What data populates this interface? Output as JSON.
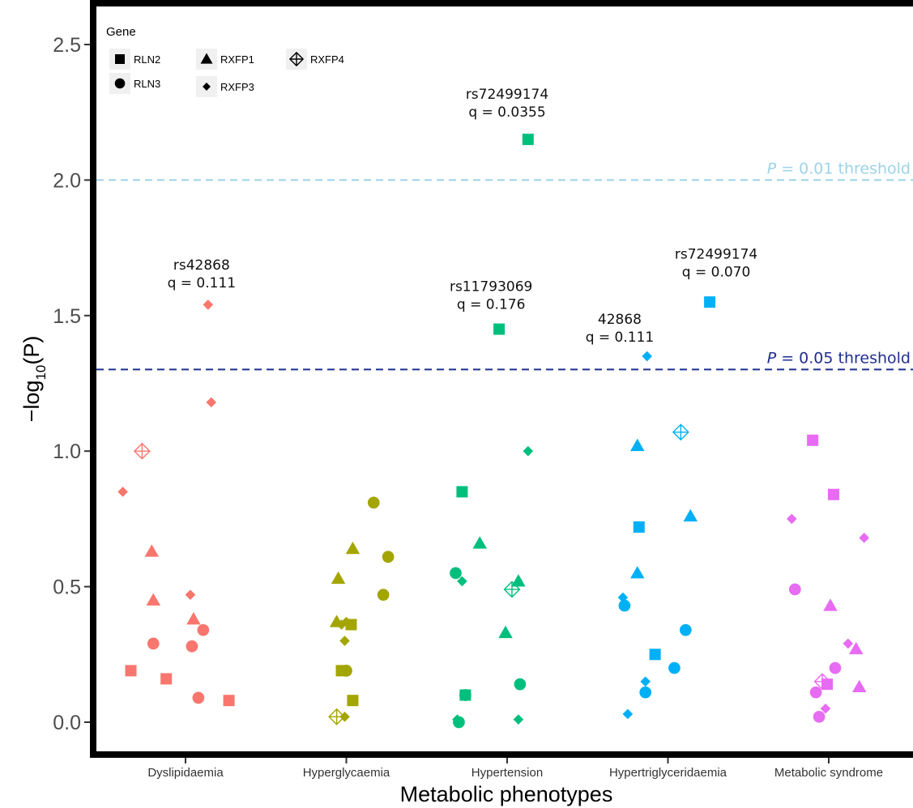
{
  "chart_data": {
    "type": "scatter",
    "title": "",
    "xlabel": "Metabolic phenotypes",
    "ylabel_prefix": "−log",
    "ylabel_sub": "10",
    "ylabel_arg": "(P)",
    "ylim": [
      -0.1,
      2.6
    ],
    "yticks": [
      "0.0",
      "0.5",
      "1.0",
      "1.5",
      "2.0",
      "2.5"
    ],
    "ytick_values": [
      0,
      0.5,
      1.0,
      1.5,
      2.0,
      2.5
    ],
    "categories": [
      "Dyslipidaemia",
      "Hyperglycaemia",
      "Hypertension",
      "Hypertriglyceridaemia",
      "Metabolic syndrome"
    ],
    "colors": {
      "Dyslipidaemia": "#F8766D",
      "Hyperglycaemia": "#A3A500",
      "Hypertension": "#00BF7D",
      "Hypertriglyceridaemia": "#00B0F6",
      "Metabolic syndrome": "#E76BF3"
    },
    "legend": {
      "title": "Gene",
      "position": "top-left",
      "entries": [
        {
          "gene": "RLN2",
          "shape": "square"
        },
        {
          "gene": "RLN3",
          "shape": "circle"
        },
        {
          "gene": "RXFP1",
          "shape": "triangle"
        },
        {
          "gene": "RXFP3",
          "shape": "diamond"
        },
        {
          "gene": "RXFP4",
          "shape": "crossed-diamond"
        }
      ]
    },
    "thresholds": [
      {
        "value": 2.0,
        "p_label": "P",
        "label": " = 0.01 threshold",
        "color": "#9DD3E8"
      },
      {
        "value": 1.30103,
        "p_label": "P",
        "label": " = 0.05 threshold",
        "color": "#1F2F8F"
      }
    ],
    "annotations": [
      {
        "lines": [
          "rs72499174",
          "q = 0.0355"
        ],
        "category": "Hypertension",
        "x_offset": 0.0,
        "y": 2.3
      },
      {
        "lines": [
          "rs42868",
          "q = 0.111"
        ],
        "category": "Dyslipidaemia",
        "x_offset": 0.1,
        "y": 1.67
      },
      {
        "lines": [
          "rs11793069",
          "q = 0.176"
        ],
        "category": "Hypertension",
        "x_offset": -0.1,
        "y": 1.59
      },
      {
        "lines": [
          "rs72499174",
          "q = 0.070"
        ],
        "category": "Hypertriglyceridaemia",
        "x_offset": 0.3,
        "y": 1.71
      },
      {
        "lines": [
          "42868",
          "q = 0.111"
        ],
        "category": "Hypertriglyceridaemia",
        "x_offset": -0.3,
        "y": 1.47
      }
    ],
    "points": [
      {
        "category": "Dyslipidaemia",
        "gene": "RLN2",
        "x_offset": -0.34,
        "y": 0.19
      },
      {
        "category": "Dyslipidaemia",
        "gene": "RLN2",
        "x_offset": -0.12,
        "y": 0.16
      },
      {
        "category": "Dyslipidaemia",
        "gene": "RLN2",
        "x_offset": 0.27,
        "y": 0.08
      },
      {
        "category": "Dyslipidaemia",
        "gene": "RLN3",
        "x_offset": -0.2,
        "y": 0.29
      },
      {
        "category": "Dyslipidaemia",
        "gene": "RLN3",
        "x_offset": 0.04,
        "y": 0.28
      },
      {
        "category": "Dyslipidaemia",
        "gene": "RLN3",
        "x_offset": 0.11,
        "y": 0.34
      },
      {
        "category": "Dyslipidaemia",
        "gene": "RLN3",
        "x_offset": 0.08,
        "y": 0.09
      },
      {
        "category": "Dyslipidaemia",
        "gene": "RXFP1",
        "x_offset": -0.21,
        "y": 0.63
      },
      {
        "category": "Dyslipidaemia",
        "gene": "RXFP1",
        "x_offset": -0.2,
        "y": 0.45
      },
      {
        "category": "Dyslipidaemia",
        "gene": "RXFP1",
        "x_offset": 0.05,
        "y": 0.38
      },
      {
        "category": "Dyslipidaemia",
        "gene": "RXFP3",
        "x_offset": 0.14,
        "y": 1.54
      },
      {
        "category": "Dyslipidaemia",
        "gene": "RXFP3",
        "x_offset": 0.16,
        "y": 1.18
      },
      {
        "category": "Dyslipidaemia",
        "gene": "RXFP3",
        "x_offset": -0.39,
        "y": 0.85
      },
      {
        "category": "Dyslipidaemia",
        "gene": "RXFP3",
        "x_offset": 0.03,
        "y": 0.47
      },
      {
        "category": "Dyslipidaemia",
        "gene": "RXFP4",
        "x_offset": -0.27,
        "y": 1.0
      },
      {
        "category": "Hyperglycaemia",
        "gene": "RLN2",
        "x_offset": -0.03,
        "y": 0.19
      },
      {
        "category": "Hyperglycaemia",
        "gene": "RLN2",
        "x_offset": 0.03,
        "y": 0.36
      },
      {
        "category": "Hyperglycaemia",
        "gene": "RLN2",
        "x_offset": 0.04,
        "y": 0.08
      },
      {
        "category": "Hyperglycaemia",
        "gene": "RLN3",
        "x_offset": 0.0,
        "y": 0.19
      },
      {
        "category": "Hyperglycaemia",
        "gene": "RLN3",
        "x_offset": 0.17,
        "y": 0.81
      },
      {
        "category": "Hyperglycaemia",
        "gene": "RLN3",
        "x_offset": 0.26,
        "y": 0.61
      },
      {
        "category": "Hyperglycaemia",
        "gene": "RLN3",
        "x_offset": 0.23,
        "y": 0.47
      },
      {
        "category": "Hyperglycaemia",
        "gene": "RXFP1",
        "x_offset": 0.04,
        "y": 0.64
      },
      {
        "category": "Hyperglycaemia",
        "gene": "RXFP1",
        "x_offset": -0.05,
        "y": 0.53
      },
      {
        "category": "Hyperglycaemia",
        "gene": "RXFP1",
        "x_offset": -0.06,
        "y": 0.37
      },
      {
        "category": "Hyperglycaemia",
        "gene": "RXFP3",
        "x_offset": -0.03,
        "y": 0.36
      },
      {
        "category": "Hyperglycaemia",
        "gene": "RXFP3",
        "x_offset": 0.0,
        "y": 0.37
      },
      {
        "category": "Hyperglycaemia",
        "gene": "RXFP3",
        "x_offset": -0.01,
        "y": 0.3
      },
      {
        "category": "Hyperglycaemia",
        "gene": "RXFP3",
        "x_offset": -0.01,
        "y": 0.02
      },
      {
        "category": "Hyperglycaemia",
        "gene": "RXFP4",
        "x_offset": -0.06,
        "y": 0.02
      },
      {
        "category": "Hypertension",
        "gene": "RLN2",
        "x_offset": 0.13,
        "y": 2.15
      },
      {
        "category": "Hypertension",
        "gene": "RLN2",
        "x_offset": -0.05,
        "y": 1.45
      },
      {
        "category": "Hypertension",
        "gene": "RLN2",
        "x_offset": -0.28,
        "y": 0.85
      },
      {
        "category": "Hypertension",
        "gene": "RLN2",
        "x_offset": -0.26,
        "y": 0.1
      },
      {
        "category": "Hypertension",
        "gene": "RLN3",
        "x_offset": -0.32,
        "y": 0.55
      },
      {
        "category": "Hypertension",
        "gene": "RLN3",
        "x_offset": -0.26,
        "y": 0.1
      },
      {
        "category": "Hypertension",
        "gene": "RLN3",
        "x_offset": -0.3,
        "y": 0.0
      },
      {
        "category": "Hypertension",
        "gene": "RLN3",
        "x_offset": 0.08,
        "y": 0.14
      },
      {
        "category": "Hypertension",
        "gene": "RXFP1",
        "x_offset": -0.17,
        "y": 0.66
      },
      {
        "category": "Hypertension",
        "gene": "RXFP1",
        "x_offset": 0.07,
        "y": 0.52
      },
      {
        "category": "Hypertension",
        "gene": "RXFP1",
        "x_offset": -0.01,
        "y": 0.33
      },
      {
        "category": "Hypertension",
        "gene": "RXFP3",
        "x_offset": 0.13,
        "y": 1.0
      },
      {
        "category": "Hypertension",
        "gene": "RXFP3",
        "x_offset": -0.28,
        "y": 0.52
      },
      {
        "category": "Hypertension",
        "gene": "RXFP3",
        "x_offset": 0.07,
        "y": 0.01
      },
      {
        "category": "Hypertension",
        "gene": "RXFP3",
        "x_offset": -0.31,
        "y": 0.01
      },
      {
        "category": "Hypertension",
        "gene": "RXFP4",
        "x_offset": 0.03,
        "y": 0.49
      },
      {
        "category": "Hypertriglyceridaemia",
        "gene": "RLN2",
        "x_offset": 0.26,
        "y": 1.55
      },
      {
        "category": "Hypertriglyceridaemia",
        "gene": "RLN2",
        "x_offset": -0.18,
        "y": 0.72
      },
      {
        "category": "Hypertriglyceridaemia",
        "gene": "RLN2",
        "x_offset": -0.08,
        "y": 0.25
      },
      {
        "category": "Hypertriglyceridaemia",
        "gene": "RLN3",
        "x_offset": -0.27,
        "y": 0.43
      },
      {
        "category": "Hypertriglyceridaemia",
        "gene": "RLN3",
        "x_offset": -0.14,
        "y": 0.11
      },
      {
        "category": "Hypertriglyceridaemia",
        "gene": "RLN3",
        "x_offset": 0.04,
        "y": 0.2
      },
      {
        "category": "Hypertriglyceridaemia",
        "gene": "RLN3",
        "x_offset": 0.11,
        "y": 0.34
      },
      {
        "category": "Hypertriglyceridaemia",
        "gene": "RXFP1",
        "x_offset": -0.19,
        "y": 1.02
      },
      {
        "category": "Hypertriglyceridaemia",
        "gene": "RXFP1",
        "x_offset": -0.19,
        "y": 0.55
      },
      {
        "category": "Hypertriglyceridaemia",
        "gene": "RXFP1",
        "x_offset": 0.14,
        "y": 0.76
      },
      {
        "category": "Hypertriglyceridaemia",
        "gene": "RXFP3",
        "x_offset": -0.13,
        "y": 1.35
      },
      {
        "category": "Hypertriglyceridaemia",
        "gene": "RXFP3",
        "x_offset": -0.28,
        "y": 0.46
      },
      {
        "category": "Hypertriglyceridaemia",
        "gene": "RXFP3",
        "x_offset": -0.14,
        "y": 0.15
      },
      {
        "category": "Hypertriglyceridaemia",
        "gene": "RXFP3",
        "x_offset": -0.25,
        "y": 0.03
      },
      {
        "category": "Hypertriglyceridaemia",
        "gene": "RXFP4",
        "x_offset": 0.08,
        "y": 1.07
      },
      {
        "category": "Metabolic syndrome",
        "gene": "RLN2",
        "x_offset": -0.1,
        "y": 1.04
      },
      {
        "category": "Metabolic syndrome",
        "gene": "RLN2",
        "x_offset": 0.03,
        "y": 0.84
      },
      {
        "category": "Metabolic syndrome",
        "gene": "RLN2",
        "x_offset": -0.01,
        "y": 0.14
      },
      {
        "category": "Metabolic syndrome",
        "gene": "RLN3",
        "x_offset": -0.21,
        "y": 0.49
      },
      {
        "category": "Metabolic syndrome",
        "gene": "RLN3",
        "x_offset": -0.08,
        "y": 0.11
      },
      {
        "category": "Metabolic syndrome",
        "gene": "RLN3",
        "x_offset": -0.06,
        "y": 0.02
      },
      {
        "category": "Metabolic syndrome",
        "gene": "RLN3",
        "x_offset": 0.04,
        "y": 0.2
      },
      {
        "category": "Metabolic syndrome",
        "gene": "RXFP1",
        "x_offset": 0.01,
        "y": 0.43
      },
      {
        "category": "Metabolic syndrome",
        "gene": "RXFP1",
        "x_offset": 0.17,
        "y": 0.27
      },
      {
        "category": "Metabolic syndrome",
        "gene": "RXFP1",
        "x_offset": 0.19,
        "y": 0.13
      },
      {
        "category": "Metabolic syndrome",
        "gene": "RXFP3",
        "x_offset": -0.23,
        "y": 0.75
      },
      {
        "category": "Metabolic syndrome",
        "gene": "RXFP3",
        "x_offset": 0.22,
        "y": 0.68
      },
      {
        "category": "Metabolic syndrome",
        "gene": "RXFP3",
        "x_offset": 0.12,
        "y": 0.29
      },
      {
        "category": "Metabolic syndrome",
        "gene": "RXFP3",
        "x_offset": -0.02,
        "y": 0.05
      },
      {
        "category": "Metabolic syndrome",
        "gene": "RXFP4",
        "x_offset": -0.04,
        "y": 0.15
      }
    ]
  }
}
